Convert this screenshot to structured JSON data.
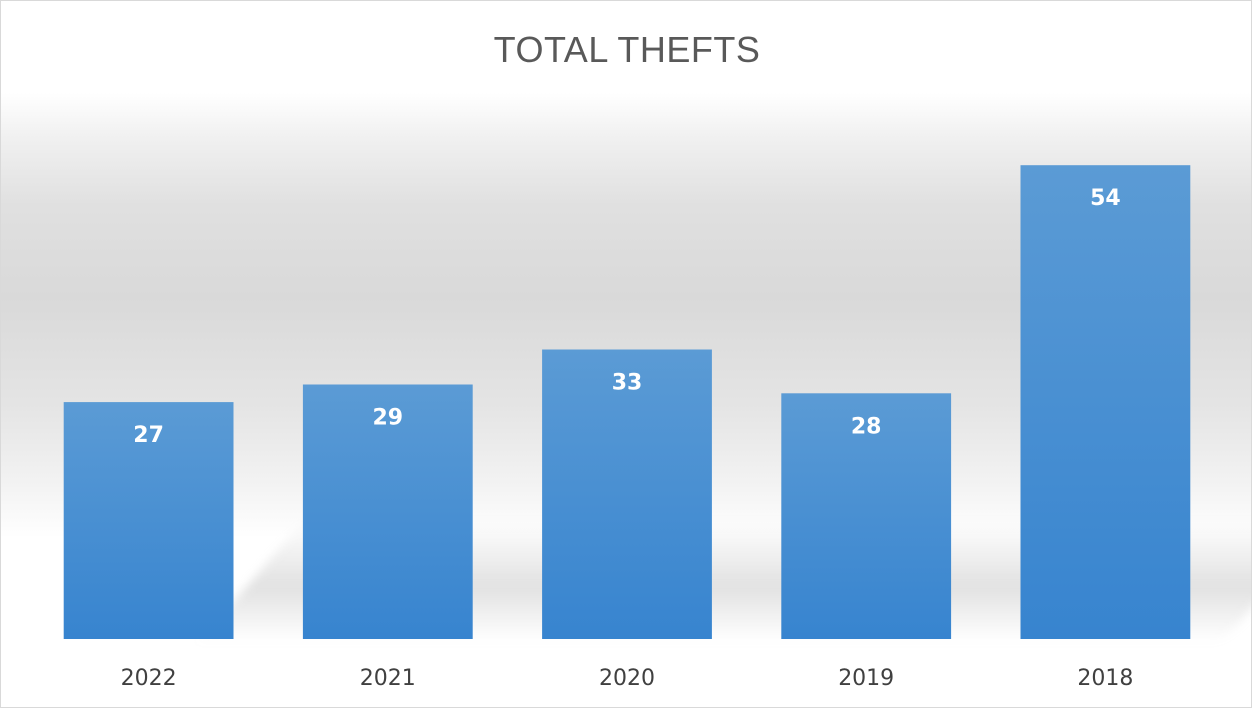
{
  "chart_data": {
    "type": "bar",
    "title": "TOTAL THEFTS",
    "categories": [
      "2022",
      "2021",
      "2020",
      "2019",
      "2018"
    ],
    "values": [
      27,
      29,
      33,
      28,
      54
    ],
    "xlabel": "",
    "ylabel": "",
    "ylim": [
      0,
      62
    ],
    "grid": false,
    "legend": "none",
    "data_labels": true,
    "bar_color": "#4a90d6",
    "label_color": "#ffffff"
  }
}
